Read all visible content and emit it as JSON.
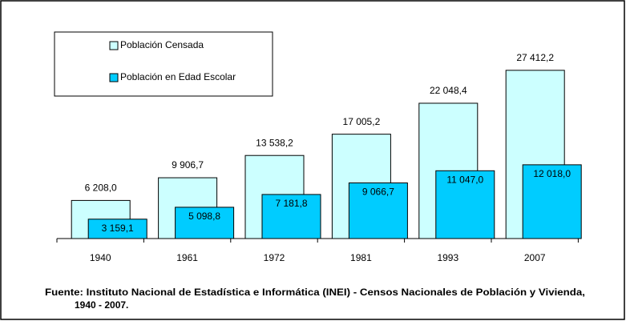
{
  "chart_data": {
    "type": "bar",
    "categories": [
      "1940",
      "1961",
      "1972",
      "1981",
      "1993",
      "2007"
    ],
    "series": [
      {
        "name": "Población Censada",
        "color": "#ccffff",
        "values": [
          6208.0,
          9906.7,
          13538.2,
          17005.2,
          22048.4,
          27412.2
        ],
        "value_labels": [
          "6 208,0",
          "9 906,7",
          "13 538,2",
          "17 005,2",
          "22 048,4",
          "27 412,2"
        ]
      },
      {
        "name": "Población en Edad Escolar",
        "color": "#00ccff",
        "values": [
          3159.1,
          5098.8,
          7181.8,
          9066.7,
          11047.0,
          12018.0
        ],
        "value_labels": [
          "3 159,1",
          "5 098,8",
          "7 181,8",
          "9 066,7",
          "11 047,0",
          "12 018,0"
        ]
      }
    ],
    "ylim": [
      0,
      30000
    ],
    "source": [
      "Fuente: Instituto Nacional de Estadística e Informática (INEI) - Censos Nacionales de Población y Vivienda,",
      "1940  -  2007."
    ]
  }
}
